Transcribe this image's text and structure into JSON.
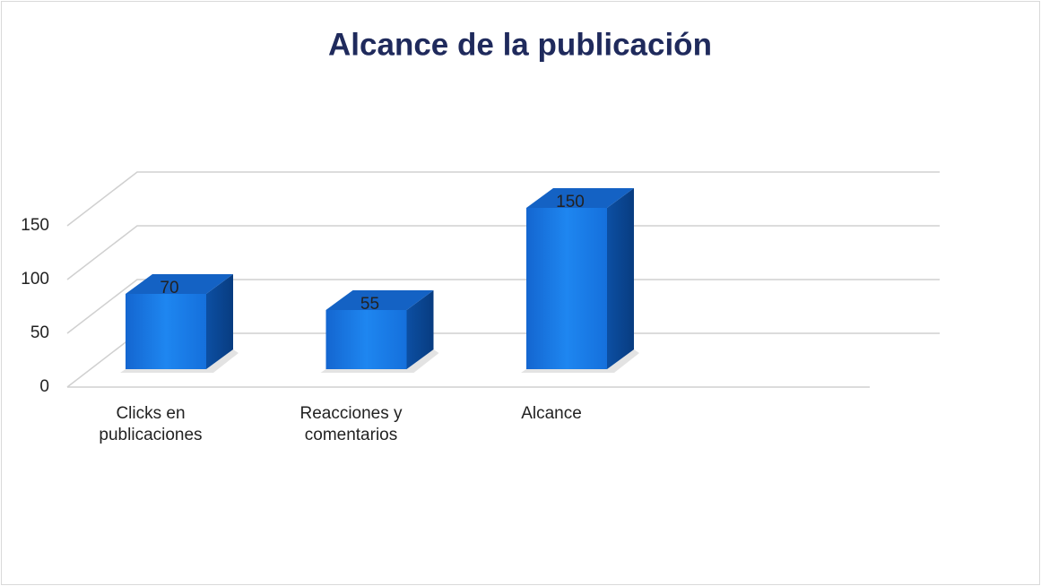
{
  "chart_data": {
    "type": "bar3d",
    "title": "Alcance de la publicación",
    "categories": [
      "Clicks en publicaciones",
      "Reacciones y comentarios",
      "Alcance"
    ],
    "values": [
      70,
      55,
      150
    ],
    "color": "#1a7fe8",
    "ylim": [
      0,
      150
    ],
    "yticks": [
      0,
      50,
      100,
      150
    ],
    "grid": true
  }
}
